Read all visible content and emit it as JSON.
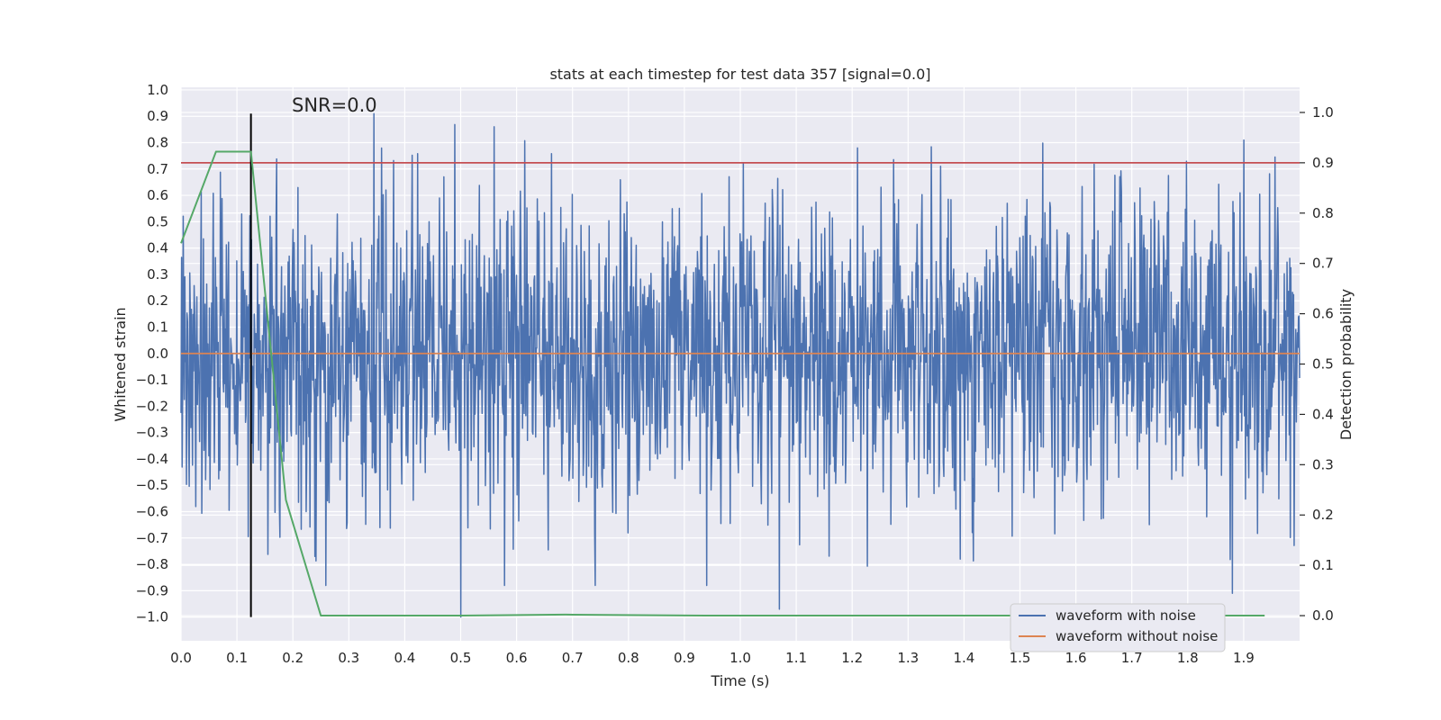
{
  "chart_data": {
    "type": "line",
    "title": "stats at each timestep for test data 357 [signal=0.0]",
    "xlabel": "Time (s)",
    "ylabel": "Whitened strain",
    "y2label": "Detection probability",
    "annotation": "SNR=0.0",
    "xlim": [
      0.0,
      2.0
    ],
    "ylim": [
      -1.09,
      1.01
    ],
    "y2lim": [
      -0.05,
      1.05
    ],
    "x_ticks": [
      "0.0",
      "0.1",
      "0.2",
      "0.3",
      "0.4",
      "0.5",
      "0.6",
      "0.7",
      "0.8",
      "0.9",
      "1.0",
      "1.1",
      "1.2",
      "1.3",
      "1.4",
      "1.5",
      "1.6",
      "1.7",
      "1.8",
      "1.9"
    ],
    "y_ticks": [
      "1.0",
      "0.9",
      "0.8",
      "0.7",
      "0.6",
      "0.5",
      "0.4",
      "0.3",
      "0.2",
      "0.1",
      "0.0",
      "−0.1",
      "−0.2",
      "−0.3",
      "−0.4",
      "−0.5",
      "−0.6",
      "−0.7",
      "−0.8",
      "−0.9",
      "−1.0"
    ],
    "y2_ticks": [
      "1.0",
      "0.9",
      "0.8",
      "0.7",
      "0.6",
      "0.5",
      "0.4",
      "0.3",
      "0.2",
      "0.1",
      "0.0"
    ],
    "series": [
      {
        "name": "waveform with noise",
        "axis": "left",
        "color": "#4c72b0",
        "description": "dense random noise sampled across 0.0–2.0 s, roughly within ±0.5 with spikes to ±0.95",
        "x_range": [
          0.0,
          2.0
        ],
        "typical_amplitude": 0.3,
        "peak_points": [
          {
            "x": 0.345,
            "y": 0.91
          },
          {
            "x": 0.56,
            "y": 0.86
          },
          {
            "x": 0.5,
            "y": -1.0
          },
          {
            "x": 1.07,
            "y": -0.97
          },
          {
            "x": 1.21,
            "y": 0.78
          },
          {
            "x": 1.9,
            "y": 0.81
          },
          {
            "x": 1.88,
            "y": -0.91
          }
        ]
      },
      {
        "name": "waveform without noise",
        "axis": "left",
        "color": "#dd8452",
        "x": [
          0.0,
          2.0
        ],
        "y": [
          0.0,
          0.0
        ]
      },
      {
        "name": "detection probability",
        "axis": "right",
        "color": "#55a868",
        "x": [
          0.0,
          0.0625,
          0.125,
          0.1875,
          0.25,
          0.5,
          0.6875,
          0.9375,
          1.25,
          1.5,
          1.75,
          1.9375
        ],
        "y": [
          0.74,
          0.922,
          0.922,
          0.23,
          0.0,
          0.0,
          0.002,
          0.0,
          0.0,
          0.0,
          0.0,
          0.0
        ]
      }
    ],
    "threshold": {
      "axis": "right",
      "value": 0.9,
      "color": "#c44e52"
    },
    "marker_line": {
      "x": 0.125,
      "y_range": [
        -1.0,
        0.91
      ],
      "color": "#000000"
    },
    "legend": {
      "location": "lower-right",
      "entries": [
        {
          "label": "waveform with noise",
          "color": "#4c72b0"
        },
        {
          "label": "waveform without noise",
          "color": "#dd8452"
        }
      ]
    }
  }
}
